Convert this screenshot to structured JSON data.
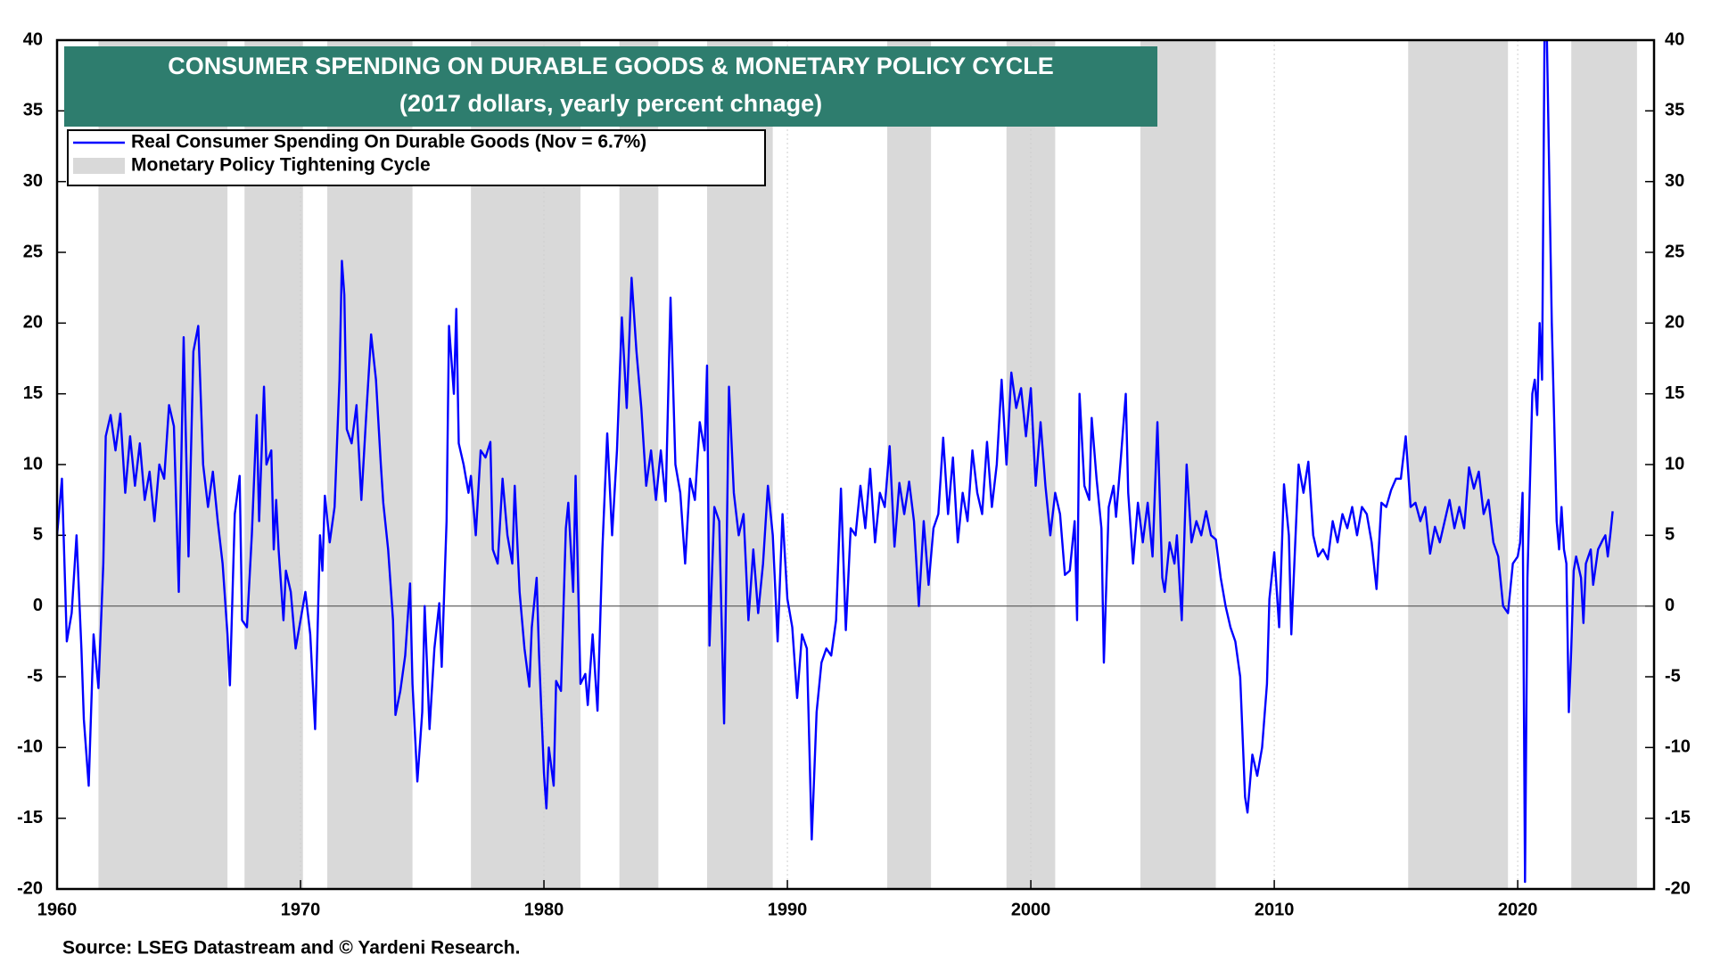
{
  "chart_data": {
    "type": "line",
    "title": "CONSUMER SPENDING ON DURABLE GOODS & MONETARY POLICY CYCLE",
    "subtitle": "(2017 dollars, yearly percent chnage)",
    "source": "Source: LSEG Datastream and © Yardeni Research.",
    "xlim": [
      1960,
      2025.6
    ],
    "xticks": [
      1960,
      1970,
      1980,
      1990,
      2000,
      2010,
      2020
    ],
    "ylim": [
      -20,
      40
    ],
    "yticks": [
      -20,
      -15,
      -10,
      -5,
      0,
      5,
      10,
      15,
      20,
      25,
      30,
      35,
      40
    ],
    "y2lim": [
      -20,
      40
    ],
    "y2ticks": [
      -20,
      -15,
      -10,
      -5,
      0,
      5,
      10,
      15,
      20,
      25,
      30,
      35,
      40
    ],
    "grid": true,
    "legend": "top-left",
    "shaded": {
      "name": "Monetary Policy Tightening Cycle",
      "color": "#d9d9d9",
      "periods": [
        [
          1961.7,
          1967.0
        ],
        [
          1967.7,
          1970.1
        ],
        [
          1971.1,
          1974.6
        ],
        [
          1977.0,
          1981.5
        ],
        [
          1983.1,
          1984.7
        ],
        [
          1986.7,
          1989.4
        ],
        [
          1994.1,
          1995.9
        ],
        [
          1999.0,
          2001.0
        ],
        [
          2004.5,
          2007.6
        ],
        [
          2015.5,
          2019.6
        ],
        [
          2022.2,
          2024.9
        ]
      ]
    },
    "x": [
      1960.0,
      1960.2,
      1960.4,
      1960.6,
      1960.8,
      1961.0,
      1961.1,
      1961.3,
      1961.5,
      1961.7,
      1961.9,
      1962.0,
      1962.2,
      1962.4,
      1962.6,
      1962.8,
      1963.0,
      1963.2,
      1963.4,
      1963.6,
      1963.8,
      1964.0,
      1964.2,
      1964.4,
      1964.6,
      1964.8,
      1965.0,
      1965.2,
      1965.4,
      1965.6,
      1965.8,
      1966.0,
      1966.2,
      1966.4,
      1966.6,
      1966.8,
      1967.0,
      1967.1,
      1967.3,
      1967.5,
      1967.6,
      1967.8,
      1968.0,
      1968.2,
      1968.3,
      1968.5,
      1968.6,
      1968.8,
      1968.9,
      1969.0,
      1969.1,
      1969.3,
      1969.4,
      1969.6,
      1969.8,
      1970.0,
      1970.2,
      1970.4,
      1970.6,
      1970.8,
      1970.9,
      1971.0,
      1971.2,
      1971.4,
      1971.6,
      1971.7,
      1971.8,
      1971.9,
      1972.1,
      1972.3,
      1972.5,
      1972.7,
      1972.9,
      1973.1,
      1973.3,
      1973.4,
      1973.6,
      1973.8,
      1973.9,
      1974.1,
      1974.3,
      1974.5,
      1974.6,
      1974.8,
      1975.0,
      1975.1,
      1975.3,
      1975.5,
      1975.7,
      1975.8,
      1976.0,
      1976.1,
      1976.3,
      1976.4,
      1976.5,
      1976.7,
      1976.9,
      1977.0,
      1977.2,
      1977.4,
      1977.6,
      1977.8,
      1977.9,
      1978.1,
      1978.3,
      1978.5,
      1978.7,
      1978.8,
      1979.0,
      1979.2,
      1979.4,
      1979.5,
      1979.7,
      1979.8,
      1980.0,
      1980.1,
      1980.2,
      1980.4,
      1980.5,
      1980.7,
      1980.9,
      1981.0,
      1981.2,
      1981.3,
      1981.5,
      1981.7,
      1981.8,
      1982.0,
      1982.2,
      1982.4,
      1982.6,
      1982.8,
      1983.0,
      1983.2,
      1983.4,
      1983.6,
      1983.8,
      1984.0,
      1984.2,
      1984.4,
      1984.6,
      1984.8,
      1985.0,
      1985.2,
      1985.4,
      1985.6,
      1985.8,
      1986.0,
      1986.2,
      1986.4,
      1986.6,
      1986.7,
      1986.8,
      1987.0,
      1987.2,
      1987.4,
      1987.6,
      1987.8,
      1988.0,
      1988.2,
      1988.4,
      1988.6,
      1988.8,
      1989.0,
      1989.2,
      1989.4,
      1989.6,
      1989.8,
      1990.0,
      1990.2,
      1990.4,
      1990.6,
      1990.8,
      1991.0,
      1991.2,
      1991.4,
      1991.6,
      1991.8,
      1992.0,
      1992.2,
      1992.4,
      1992.6,
      1992.8,
      1993.0,
      1993.2,
      1993.4,
      1993.6,
      1993.8,
      1994.0,
      1994.2,
      1994.4,
      1994.6,
      1994.8,
      1995.0,
      1995.2,
      1995.4,
      1995.6,
      1995.8,
      1996.0,
      1996.2,
      1996.4,
      1996.6,
      1996.8,
      1997.0,
      1997.2,
      1997.4,
      1997.6,
      1997.8,
      1998.0,
      1998.2,
      1998.4,
      1998.6,
      1998.8,
      1999.0,
      1999.2,
      1999.4,
      1999.6,
      1999.8,
      2000.0,
      2000.2,
      2000.4,
      2000.6,
      2000.8,
      2001.0,
      2001.2,
      2001.4,
      2001.6,
      2001.8,
      2001.9,
      2002.0,
      2002.2,
      2002.4,
      2002.5,
      2002.7,
      2002.9,
      2003.0,
      2003.2,
      2003.4,
      2003.5,
      2003.7,
      2003.9,
      2004.0,
      2004.2,
      2004.4,
      2004.6,
      2004.8,
      2005.0,
      2005.2,
      2005.4,
      2005.5,
      2005.7,
      2005.9,
      2006.0,
      2006.2,
      2006.4,
      2006.6,
      2006.8,
      2007.0,
      2007.2,
      2007.4,
      2007.6,
      2007.8,
      2008.0,
      2008.2,
      2008.4,
      2008.6,
      2008.8,
      2008.9,
      2009.1,
      2009.3,
      2009.5,
      2009.7,
      2009.8,
      2010.0,
      2010.2,
      2010.4,
      2010.6,
      2010.7,
      2011.0,
      2011.2,
      2011.4,
      2011.6,
      2011.8,
      2012.0,
      2012.2,
      2012.4,
      2012.6,
      2012.8,
      2013.0,
      2013.2,
      2013.4,
      2013.6,
      2013.8,
      2014.0,
      2014.2,
      2014.4,
      2014.6,
      2014.8,
      2015.0,
      2015.2,
      2015.4,
      2015.6,
      2015.8,
      2016.0,
      2016.2,
      2016.4,
      2016.6,
      2016.8,
      2017.0,
      2017.2,
      2017.4,
      2017.6,
      2017.8,
      2018.0,
      2018.2,
      2018.4,
      2018.6,
      2018.8,
      2019.0,
      2019.2,
      2019.4,
      2019.6,
      2019.8,
      2020.0,
      2020.1,
      2020.2,
      2020.3,
      2020.4,
      2020.6,
      2020.7,
      2020.8,
      2020.9,
      2021.0,
      2021.1,
      2021.2,
      2021.4,
      2021.6,
      2021.7,
      2021.8,
      2021.9,
      2022.0,
      2022.1,
      2022.2,
      2022.3,
      2022.4,
      2022.6,
      2022.7,
      2022.8,
      2023.0,
      2023.1,
      2023.3,
      2023.5,
      2023.6,
      2023.7,
      2023.8,
      2023.9
    ],
    "series": [
      {
        "name": "Real Consumer Spending On Durable Goods (Nov = 6.7%)",
        "color": "#0000ff",
        "values": [
          5,
          9,
          -2.5,
          -0.5,
          5,
          -3,
          -8,
          -12.7,
          -2,
          -5.8,
          3,
          12,
          13.5,
          11,
          13.6,
          8,
          12,
          8.5,
          11.5,
          7.5,
          9.5,
          6,
          10,
          9,
          14.2,
          12.7,
          1,
          19,
          3.5,
          18,
          19.8,
          10,
          7,
          9.5,
          6,
          3,
          -2,
          -5.6,
          6.5,
          9.2,
          -1,
          -1.5,
          5,
          13.5,
          6,
          15.5,
          10,
          11,
          4,
          7.5,
          4,
          -1,
          2.5,
          1,
          -3,
          -1,
          1,
          -2,
          -8.7,
          5,
          2.5,
          7.8,
          4.5,
          7,
          16,
          24.4,
          22,
          12.5,
          11.5,
          14.2,
          7.5,
          13.5,
          19.2,
          16,
          10,
          7.3,
          4,
          -1,
          -7.7,
          -6,
          -3.5,
          1.6,
          -5.5,
          -12.4,
          -7.5,
          0,
          -8.7,
          -3,
          0.2,
          -4.3,
          6,
          19.8,
          15,
          21,
          11.5,
          10,
          8,
          9.2,
          5,
          11,
          10.5,
          11.6,
          4,
          3,
          9,
          5,
          3,
          8.5,
          1,
          -3,
          -5.7,
          -1.5,
          2,
          -3.5,
          -11.8,
          -14.3,
          -10,
          -12.7,
          -5.3,
          -6,
          5.5,
          7.3,
          1,
          9.2,
          -5.5,
          -4.8,
          -7,
          -2,
          -7.4,
          4,
          12.2,
          5,
          11,
          20.4,
          14,
          23.2,
          18,
          14,
          8.5,
          11,
          7.5,
          11,
          7.4,
          21.8,
          10,
          8,
          3,
          9,
          7.5,
          13,
          11,
          17,
          -2.8,
          7,
          6,
          -8.3,
          15.5,
          8,
          5,
          6.5,
          -1,
          4,
          -0.5,
          3,
          8.5,
          5,
          -2.5,
          6.5,
          0.5,
          -1.5,
          -6.5,
          -2,
          -3,
          -16.5,
          -7.5,
          -4,
          -3,
          -3.5,
          -1,
          8.3,
          -1.7,
          5.5,
          5,
          8.5,
          5.5,
          9.7,
          4.5,
          8,
          7,
          11.3,
          4.2,
          8.7,
          6.5,
          8.8,
          6,
          0,
          6,
          1.5,
          5.5,
          6.5,
          11.9,
          6.5,
          10.5,
          4.5,
          8,
          6,
          11,
          8,
          6.5,
          11.6,
          7,
          10,
          16,
          10,
          16.5,
          14,
          15.4,
          12,
          15.4,
          8.5,
          13,
          8.5,
          5,
          8,
          6.5,
          2.2,
          2.5,
          6,
          -1,
          15,
          8.5,
          7.5,
          13.3,
          9,
          5.5,
          -4,
          7,
          8.5,
          6.3,
          10.5,
          15,
          8,
          3,
          7.3,
          4.5,
          7.3,
          3.5,
          13,
          2,
          1,
          4.5,
          3,
          5,
          -1,
          10,
          4.5,
          6,
          5,
          6.7,
          5,
          4.7,
          2,
          0,
          -1.5,
          -2.5,
          -5,
          -13.5,
          -14.6,
          -10.5,
          -12,
          -10,
          -5.5,
          0.5,
          3.8,
          -1.5,
          8.6,
          5,
          -2,
          10,
          8,
          10.2,
          5,
          3.5,
          4,
          3.3,
          6,
          4.5,
          6.5,
          5.5,
          7,
          5,
          7,
          6.5,
          4.5,
          1.2,
          7.3,
          7,
          8.2,
          9,
          9,
          12,
          7,
          7.3,
          6,
          7,
          3.7,
          5.6,
          4.5,
          6,
          7.5,
          5.5,
          7,
          5.5,
          9.8,
          8.3,
          9.5,
          6.5,
          7.5,
          4.5,
          3.5,
          0,
          -0.5,
          3,
          3.5,
          4.5,
          8,
          -19.5,
          2,
          15,
          16,
          13.5,
          20,
          16,
          40,
          40,
          20,
          6,
          4,
          7,
          4,
          3,
          -7.5,
          -3,
          2.5,
          3.5,
          2,
          -1.2,
          3,
          4,
          1.5,
          4,
          4.7,
          5,
          3.5,
          5,
          6.7
        ]
      }
    ]
  }
}
